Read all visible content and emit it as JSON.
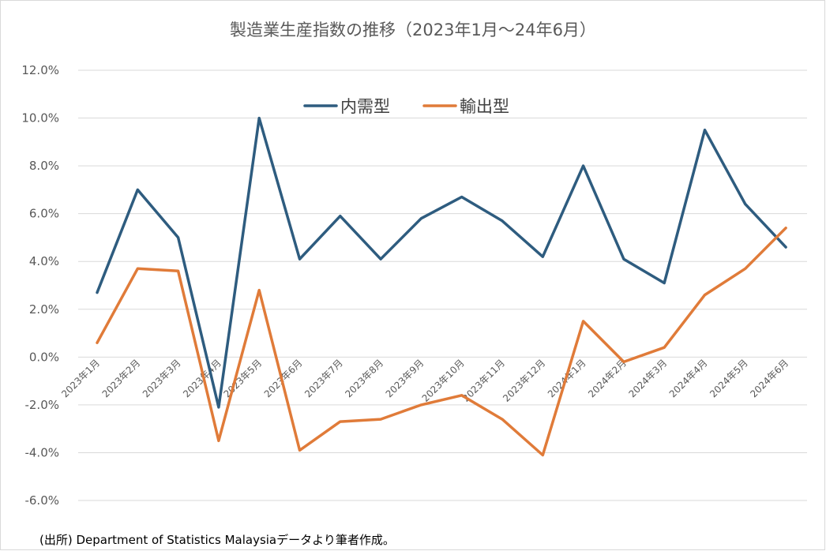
{
  "chart_data": {
    "type": "line",
    "title": "製造業生産指数の推移（2023年1月〜24年6月）",
    "categories": [
      "2023年1月",
      "2023年2月",
      "2023年3月",
      "2023年4月",
      "2023年5月",
      "2023年6月",
      "2023年7月",
      "2023年8月",
      "2023年9月",
      "2023年10月",
      "2023年11月",
      "2023年12月",
      "2024年1月",
      "2024年2月",
      "2024年3月",
      "2024年4月",
      "2024年5月",
      "2024年6月"
    ],
    "series": [
      {
        "name": "内需型",
        "color": "#2e5c7f",
        "values": [
          2.7,
          7.0,
          5.0,
          -2.1,
          10.0,
          4.1,
          5.9,
          4.1,
          5.8,
          6.7,
          5.7,
          4.2,
          8.0,
          4.1,
          3.1,
          9.5,
          6.4,
          4.6
        ]
      },
      {
        "name": "輸出型",
        "color": "#e07b39",
        "values": [
          0.6,
          3.7,
          3.6,
          -3.5,
          2.8,
          -3.9,
          -2.7,
          -2.6,
          -2.0,
          -1.6,
          -2.6,
          -4.1,
          1.5,
          -0.2,
          0.4,
          2.6,
          3.7,
          5.4
        ]
      }
    ],
    "ylim": [
      -6.0,
      12.0
    ],
    "yticks": [
      "12.0%",
      "10.0%",
      "8.0%",
      "6.0%",
      "4.0%",
      "2.0%",
      "0.0%",
      "-2.0%",
      "-4.0%",
      "-6.0%"
    ],
    "grid": true,
    "legend_position": "top-center",
    "xlabel": "",
    "ylabel": ""
  },
  "footnote": "(出所) Department of Statistics Malaysiaデータより筆者作成。"
}
